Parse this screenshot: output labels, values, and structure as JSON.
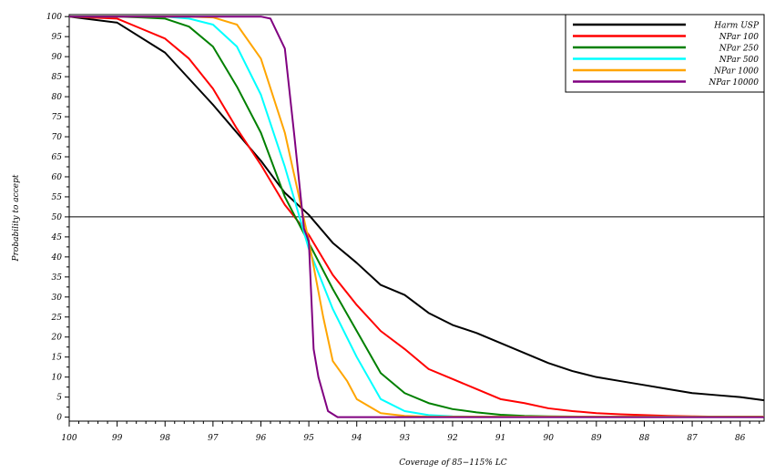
{
  "chart_data": {
    "type": "line",
    "title": "",
    "xlabel": "Coverage of 85−115% LC",
    "ylabel": "Probability to accept",
    "x_reversed": true,
    "xlim": [
      100,
      85.5
    ],
    "ylim": [
      -1,
      100.5
    ],
    "x_ticks": [
      100,
      99,
      98,
      97,
      96,
      95,
      94,
      93,
      92,
      91,
      90,
      89,
      88,
      87,
      86,
      85
    ],
    "x_tick_labels": [
      "100",
      "99",
      "98",
      "97",
      "96",
      "95",
      "94",
      "93",
      "92",
      "91",
      "90",
      "89",
      "88",
      "87",
      "86",
      "85"
    ],
    "y_ticks": [
      0,
      5,
      10,
      15,
      20,
      25,
      30,
      35,
      40,
      45,
      50,
      55,
      60,
      65,
      70,
      75,
      80,
      85,
      90,
      95,
      100
    ],
    "y_tick_labels": [
      "0",
      "5",
      "10",
      "15",
      "20",
      "25",
      "30",
      "35",
      "40",
      "45",
      "50",
      "55",
      "60",
      "65",
      "70",
      "75",
      "80",
      "85",
      "90",
      "95",
      "100"
    ],
    "reference_line_y": 50,
    "legend_position": "top-right",
    "series": [
      {
        "name": "Harm USP",
        "color": "#000000",
        "x": [
          100,
          99,
          98,
          97,
          96.5,
          96,
          95.5,
          95,
          94.5,
          94,
          93.5,
          93,
          92.5,
          92,
          91.5,
          91,
          90.5,
          90,
          89.5,
          89,
          88.5,
          88,
          87.5,
          87,
          86.5,
          86,
          85.5
        ],
        "y": [
          100,
          98.5,
          91,
          78,
          71,
          64,
          56,
          50.5,
          43.5,
          38.5,
          33,
          30.5,
          26,
          23,
          21,
          18.5,
          16,
          13.5,
          11.5,
          10,
          9,
          8,
          7,
          6,
          5.5,
          5,
          4.2
        ]
      },
      {
        "name": "NPar 100",
        "color": "#ff0000",
        "x": [
          100,
          99,
          98.5,
          98,
          97.5,
          97,
          96.5,
          96,
          95.5,
          95,
          94.5,
          94,
          93.5,
          93,
          92.5,
          92,
          91.5,
          91,
          90.5,
          90,
          89.5,
          89,
          88.5,
          88,
          87.5,
          87,
          86.5,
          86,
          85.5
        ],
        "y": [
          100,
          99.5,
          97,
          94.5,
          89.5,
          82,
          72,
          63,
          53,
          45.5,
          35.5,
          28,
          21.5,
          17,
          12,
          9.5,
          7,
          4.5,
          3.5,
          2.2,
          1.5,
          1,
          0.7,
          0.5,
          0.3,
          0.2,
          0.1,
          0.1,
          0.1
        ]
      },
      {
        "name": "NPar 250",
        "color": "#008000",
        "x": [
          100,
          99,
          98.5,
          98,
          97.5,
          97,
          96.5,
          96,
          95.5,
          95,
          94.5,
          94,
          93.5,
          93,
          92.5,
          92,
          91.5,
          91,
          90.5,
          90,
          89,
          88,
          87,
          86,
          85.5
        ],
        "y": [
          100,
          100,
          99.8,
          99.5,
          97.5,
          92.5,
          82.5,
          71,
          55,
          43.5,
          32,
          21.5,
          11,
          6,
          3.5,
          2,
          1.2,
          0.6,
          0.3,
          0.2,
          0.1,
          0.1,
          0.1,
          0.1,
          0.1
        ]
      },
      {
        "name": "NPar 500",
        "color": "#00ffff",
        "x": [
          100,
          98.5,
          98,
          97.5,
          97,
          96.5,
          96,
          95.5,
          95,
          94.5,
          94,
          93.5,
          93,
          92.5,
          92,
          91.5,
          91,
          90,
          89,
          88,
          87,
          86,
          85.5
        ],
        "y": [
          100,
          100,
          100,
          99.5,
          98,
          92.5,
          80.5,
          62.5,
          42,
          27,
          15,
          4.5,
          1.5,
          0.5,
          0.2,
          0.1,
          0.1,
          0.1,
          0.1,
          0.1,
          0.1,
          0.1,
          0.1
        ]
      },
      {
        "name": "NPar 1000",
        "color": "#ffa500",
        "x": [
          100,
          98,
          97.5,
          97,
          96.5,
          96,
          95.5,
          95,
          94.7,
          94.5,
          94.2,
          94,
          93.5,
          93,
          92.5,
          92,
          91,
          90,
          89,
          88,
          87,
          86,
          85.5
        ],
        "y": [
          100,
          100,
          100,
          99.8,
          98,
          89.5,
          71,
          44,
          25,
          14,
          9,
          4.5,
          1,
          0.3,
          0.1,
          0.1,
          0.1,
          0.1,
          0.1,
          0.1,
          0.1,
          0.1,
          0.1
        ]
      },
      {
        "name": "NPar 10000",
        "color": "#800080",
        "x": [
          100,
          96.5,
          96,
          95.8,
          95.5,
          95.3,
          95.1,
          95,
          94.9,
          94.8,
          94.6,
          94.4,
          94,
          93,
          92,
          91,
          90,
          89,
          88,
          87,
          86,
          85.5
        ],
        "y": [
          100,
          100,
          100,
          99.5,
          92,
          70,
          47,
          44,
          17,
          10,
          1.5,
          0,
          0,
          0,
          0,
          0,
          0,
          0,
          0,
          0,
          0,
          0
        ]
      }
    ]
  }
}
